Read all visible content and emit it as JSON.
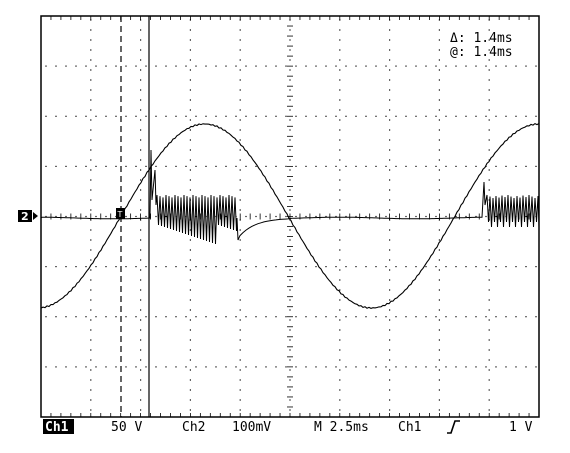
{
  "cursor_readout": {
    "delta_symbol": "Δ",
    "delta_value": ": 1.4ms",
    "at_symbol": "@",
    "at_value": ": 1.4ms"
  },
  "channel_marker": {
    "label": "2"
  },
  "trigger_marker": {
    "label": "T"
  },
  "status_bar": {
    "ch1_label": "Ch1",
    "ch1_scale": "50 V",
    "ch2_label": "Ch2",
    "ch2_scale": "100mV",
    "timebase": "M 2.5ms",
    "trigger_source": "Ch1",
    "trigger_slope_icon": "rising-edge-icon",
    "trigger_level": "1 V"
  },
  "colors": {
    "background": "#ffffff",
    "trace": "#000000",
    "grid": "#000000"
  }
}
